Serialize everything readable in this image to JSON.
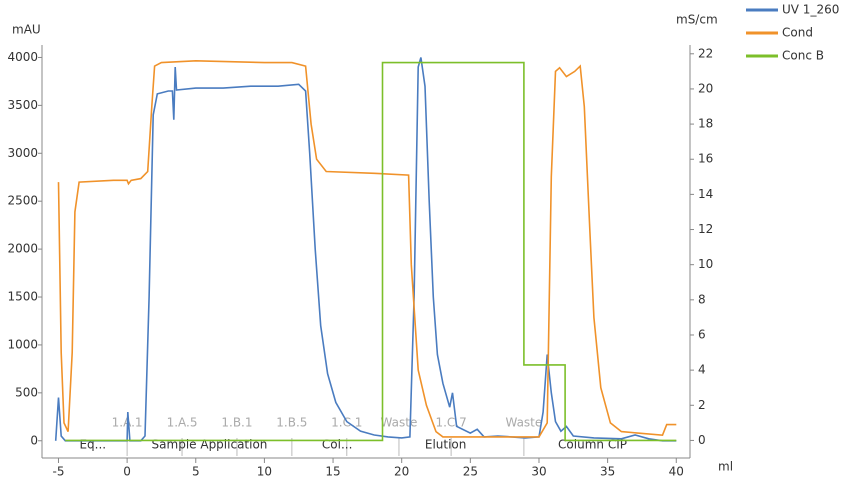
{
  "chart_data": {
    "type": "line",
    "y_label": "mAU",
    "y2_label": "mS/cm",
    "x_label": "ml",
    "xlim": [
      -6.2,
      41
    ],
    "xticks": [
      -5,
      0,
      5,
      10,
      15,
      20,
      25,
      30,
      35,
      40
    ],
    "ylim": [
      -180,
      4130
    ],
    "yticks": [
      0,
      500,
      1000,
      1500,
      2000,
      2500,
      3000,
      3500,
      4000
    ],
    "y2lim": [
      -1,
      22.5
    ],
    "y2ticks": [
      0,
      2,
      4,
      6,
      8,
      10,
      12,
      14,
      16,
      18,
      20,
      22
    ],
    "grid": false,
    "legend": "top-right",
    "series": [
      {
        "name": "UV 1_260",
        "color": "#4a7cc0",
        "axis": "y",
        "x": [
          -5.2,
          -5,
          -4.8,
          -4.5,
          -3,
          -1,
          0,
          0.05,
          0.2,
          1,
          1.3,
          1.6,
          1.9,
          2.2,
          3,
          3.3,
          3.4,
          3.5,
          3.6,
          5,
          7,
          9,
          11,
          12.5,
          13,
          13.3,
          13.7,
          14.1,
          14.6,
          15.2,
          16,
          17,
          18,
          19,
          20,
          20.6,
          20.9,
          21.2,
          21.4,
          21.7,
          22,
          22.3,
          22.6,
          23,
          23.5,
          23.7,
          24,
          25,
          25.5,
          26,
          27,
          28,
          29,
          30,
          30.3,
          30.6,
          30.9,
          31.2,
          31.6,
          32,
          32.5,
          34,
          36,
          37,
          38,
          39,
          40
        ],
        "values": [
          0,
          450,
          50,
          0,
          0,
          0,
          0,
          300,
          0,
          0,
          50,
          1500,
          3400,
          3620,
          3650,
          3650,
          3350,
          3900,
          3660,
          3680,
          3680,
          3700,
          3700,
          3720,
          3650,
          3000,
          2000,
          1200,
          700,
          400,
          200,
          100,
          60,
          40,
          30,
          40,
          1500,
          3900,
          4000,
          3700,
          2500,
          1500,
          900,
          600,
          350,
          500,
          150,
          80,
          120,
          40,
          50,
          40,
          30,
          40,
          300,
          900,
          500,
          200,
          100,
          150,
          50,
          30,
          20,
          60,
          20,
          0,
          0
        ]
      },
      {
        "name": "Cond",
        "color": "#f0922a",
        "axis": "y2",
        "x": [
          -5,
          -4.8,
          -4.6,
          -4.3,
          -4,
          -3.8,
          -3.5,
          -1,
          0,
          0.1,
          0.3,
          1,
          1.5,
          1.8,
          2,
          2.5,
          5,
          10,
          12,
          13,
          13.4,
          13.8,
          14.5,
          18,
          20.5,
          20.7,
          21.2,
          21.8,
          22.5,
          23,
          30,
          30.6,
          30.9,
          31.2,
          31.5,
          32,
          32.6,
          33,
          33.3,
          33.7,
          34,
          34.5,
          35.2,
          36,
          39,
          39.3,
          40
        ],
        "values": [
          14.7,
          5,
          1,
          0.5,
          5,
          13,
          14.7,
          14.8,
          14.8,
          14.6,
          14.8,
          14.9,
          15.3,
          19,
          21.3,
          21.5,
          21.6,
          21.5,
          21.5,
          21.3,
          18,
          16,
          15.3,
          15.2,
          15.1,
          10,
          4,
          2,
          0.5,
          0.2,
          0.2,
          1,
          15,
          21,
          21.2,
          20.7,
          21,
          21.3,
          19,
          12,
          7,
          3,
          1,
          0.5,
          0.3,
          0.9,
          0.9
        ]
      },
      {
        "name": "Conc B",
        "color": "#7cbf2a",
        "axis": "y2",
        "x": [
          -4.5,
          18.6,
          18.6,
          28.9,
          28.9,
          31.9,
          31.9,
          40
        ],
        "values": [
          0,
          0,
          21.5,
          21.5,
          4.3,
          4.3,
          0,
          0
        ]
      }
    ],
    "fractions": [
      {
        "label": "1.A.1",
        "x": 0
      },
      {
        "label": "1.A.5",
        "x": 4
      },
      {
        "label": "1.B.1",
        "x": 8
      },
      {
        "label": "1.B.5",
        "x": 12
      },
      {
        "label": "1.C.1",
        "x": 16
      },
      {
        "label": "Waste",
        "x": 19.8
      },
      {
        "label": "1.C.7",
        "x": 23.6
      },
      {
        "label": "Waste",
        "x": 28.9
      }
    ],
    "phases": [
      {
        "label": "Eq...",
        "x": -2.5
      },
      {
        "label": "Sample Application",
        "x": 6
      },
      {
        "label": "Col...",
        "x": 15.3
      },
      {
        "label": "Elution",
        "x": 23.2
      },
      {
        "label": "Column CIP",
        "x": 33.9
      }
    ]
  }
}
